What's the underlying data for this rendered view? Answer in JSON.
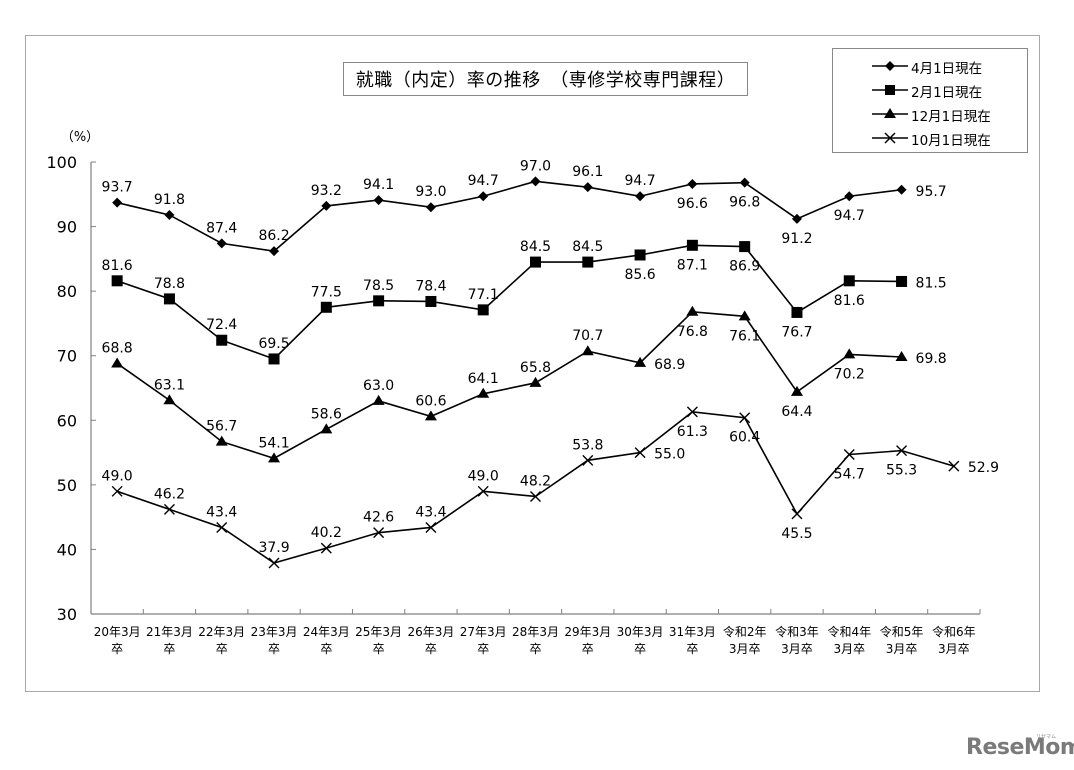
{
  "chart_data": {
    "type": "line",
    "title": "就職（内定）率の推移　（専修学校専門課程）",
    "ylabel": "（%）",
    "xlabel": "",
    "ylim": [
      30,
      100
    ],
    "yticks": [
      30,
      40,
      50,
      60,
      70,
      80,
      90,
      100
    ],
    "grid": false,
    "legend_position": "top-right",
    "categories": [
      [
        "20年3月",
        "卒"
      ],
      [
        "21年3月",
        "卒"
      ],
      [
        "22年3月",
        "卒"
      ],
      [
        "23年3月",
        "卒"
      ],
      [
        "24年3月",
        "卒"
      ],
      [
        "25年3月",
        "卒"
      ],
      [
        "26年3月",
        "卒"
      ],
      [
        "27年3月",
        "卒"
      ],
      [
        "28年3月",
        "卒"
      ],
      [
        "29年3月",
        "卒"
      ],
      [
        "30年3月",
        "卒"
      ],
      [
        "31年3月",
        "卒"
      ],
      [
        "令和2年",
        "3月卒"
      ],
      [
        "令和3年",
        "3月卒"
      ],
      [
        "令和4年",
        "3月卒"
      ],
      [
        "令和5年",
        "3月卒"
      ],
      [
        "令和6年",
        "3月卒"
      ]
    ],
    "series": [
      {
        "name": "4月1日現在",
        "marker": "diamond",
        "values": [
          93.7,
          91.8,
          87.4,
          86.2,
          93.2,
          94.1,
          93.0,
          94.7,
          97.0,
          96.1,
          94.7,
          96.6,
          96.8,
          91.2,
          94.7,
          95.7,
          null
        ],
        "label_pos": [
          "above",
          "above",
          "above",
          "above",
          "above",
          "above",
          "above",
          "above",
          "above",
          "above",
          "above",
          "below",
          "below",
          "below",
          "below",
          "right",
          null
        ]
      },
      {
        "name": "2月1日現在",
        "marker": "square",
        "values": [
          81.6,
          78.8,
          72.4,
          69.5,
          77.5,
          78.5,
          78.4,
          77.1,
          84.5,
          84.5,
          85.6,
          87.1,
          86.9,
          76.7,
          81.6,
          81.5,
          null
        ],
        "label_pos": [
          "above",
          "above",
          "above",
          "above",
          "above",
          "above",
          "above",
          "above",
          "above",
          "above",
          "below",
          "below",
          "below",
          "below",
          "below",
          "right",
          null
        ]
      },
      {
        "name": "12月1日現在",
        "marker": "triangle",
        "values": [
          68.8,
          63.1,
          56.7,
          54.1,
          58.6,
          63.0,
          60.6,
          64.1,
          65.8,
          70.7,
          68.9,
          76.8,
          76.1,
          64.4,
          70.2,
          69.8,
          null
        ],
        "label_pos": [
          "above",
          "above",
          "above",
          "above",
          "above",
          "above",
          "above",
          "above",
          "above",
          "above",
          "right",
          "below",
          "below",
          "below",
          "below",
          "right",
          null
        ]
      },
      {
        "name": "10月1日現在",
        "marker": "x",
        "values": [
          49.0,
          46.2,
          43.4,
          37.9,
          40.2,
          42.6,
          43.4,
          49.0,
          48.2,
          53.8,
          55.0,
          61.3,
          60.4,
          45.5,
          54.7,
          55.3,
          52.9
        ],
        "label_pos": [
          "above",
          "above",
          "above",
          "above",
          "above",
          "above",
          "above",
          "above",
          "above",
          "above",
          "right",
          "below",
          "below",
          "below",
          "below",
          "below",
          "right"
        ]
      }
    ]
  },
  "title": "就職（内定）率の推移　（専修学校専門課程）",
  "legend": {
    "items": [
      {
        "label": "4月1日現在",
        "marker": "diamond-icon"
      },
      {
        "label": "2月1日現在",
        "marker": "square-icon"
      },
      {
        "label": "12月1日現在",
        "marker": "triangle-icon"
      },
      {
        "label": "10月1日現在",
        "marker": "x-icon"
      }
    ]
  },
  "watermark": {
    "text": "ReseMom",
    "sub": "リセマム"
  },
  "colors": {
    "line": "#000000",
    "frame": "#a8a8a8",
    "axis": "#808080",
    "watermark": "#7a7a7a"
  }
}
